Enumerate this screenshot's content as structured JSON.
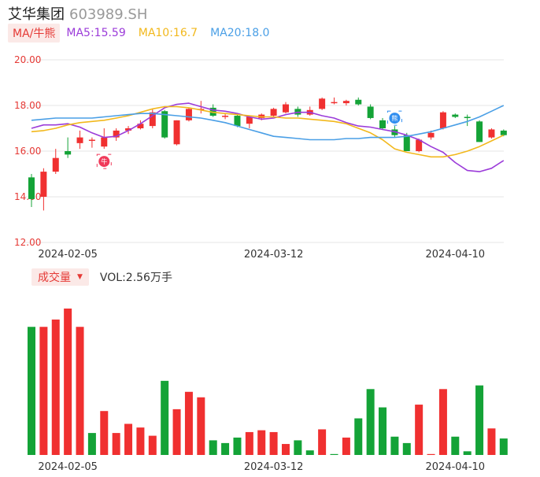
{
  "header": {
    "name": "艾华集团",
    "code": "603989.SH"
  },
  "ma_legend": {
    "button_label": "MA/牛熊",
    "ma5": {
      "label": "MA5:15.59",
      "color": "#9b3bd9"
    },
    "ma10": {
      "label": "MA10:16.7",
      "color": "#f2b81c"
    },
    "ma20": {
      "label": "MA20:18.0",
      "color": "#4a9fe6"
    }
  },
  "volume_legend": {
    "button_label": "成交量",
    "caret": "▼",
    "text": "VOL:2.56万手"
  },
  "colors": {
    "up": "#f03030",
    "down": "#14a337",
    "grid": "#e6e6e6",
    "axis_text": "#333333",
    "yaxis_text": "#e53935"
  },
  "markers": [
    {
      "type": "bull",
      "glyph": "牛",
      "index": 6,
      "color": "#f03a5a"
    },
    {
      "type": "bear",
      "glyph": "熊",
      "index": 30,
      "color": "#2f8ef0"
    }
  ],
  "chart_data": [
    {
      "type": "candlestick",
      "y_ticks": [
        "20.00",
        "18.00",
        "16.00",
        "14.00",
        "12.00"
      ],
      "ylim": [
        12,
        20
      ],
      "x_ticks": [
        {
          "label": "2024-02-05",
          "index": 3
        },
        {
          "label": "2024-03-12",
          "index": 20
        },
        {
          "label": "2024-04-10",
          "index": 35
        }
      ],
      "candles": [
        {
          "o": 14.85,
          "h": 15.0,
          "l": 13.55,
          "c": 13.9
        },
        {
          "o": 14.0,
          "h": 15.25,
          "l": 13.4,
          "c": 15.1
        },
        {
          "o": 15.1,
          "h": 16.1,
          "l": 15.0,
          "c": 15.7
        },
        {
          "o": 16.0,
          "h": 16.6,
          "l": 15.7,
          "c": 15.85
        },
        {
          "o": 16.35,
          "h": 16.9,
          "l": 16.1,
          "c": 16.6
        },
        {
          "o": 16.5,
          "h": 16.6,
          "l": 16.15,
          "c": 16.5
        },
        {
          "o": 16.2,
          "h": 17.0,
          "l": 16.1,
          "c": 16.6
        },
        {
          "o": 16.6,
          "h": 17.0,
          "l": 16.45,
          "c": 16.9
        },
        {
          "o": 16.9,
          "h": 17.1,
          "l": 16.75,
          "c": 17.0
        },
        {
          "o": 17.0,
          "h": 17.35,
          "l": 16.95,
          "c": 17.2
        },
        {
          "o": 17.1,
          "h": 17.85,
          "l": 17.0,
          "c": 17.7
        },
        {
          "o": 17.75,
          "h": 17.8,
          "l": 16.55,
          "c": 16.6
        },
        {
          "o": 16.3,
          "h": 17.35,
          "l": 16.25,
          "c": 17.35
        },
        {
          "o": 17.35,
          "h": 17.9,
          "l": 17.3,
          "c": 17.85
        },
        {
          "o": 17.8,
          "h": 18.2,
          "l": 17.65,
          "c": 17.85
        },
        {
          "o": 17.9,
          "h": 18.05,
          "l": 17.5,
          "c": 17.55
        },
        {
          "o": 17.5,
          "h": 17.65,
          "l": 17.4,
          "c": 17.55
        },
        {
          "o": 17.55,
          "h": 17.6,
          "l": 17.05,
          "c": 17.1
        },
        {
          "o": 17.2,
          "h": 17.55,
          "l": 17.0,
          "c": 17.5
        },
        {
          "o": 17.45,
          "h": 17.65,
          "l": 17.35,
          "c": 17.6
        },
        {
          "o": 17.55,
          "h": 17.9,
          "l": 17.5,
          "c": 17.85
        },
        {
          "o": 17.7,
          "h": 18.15,
          "l": 17.65,
          "c": 18.05
        },
        {
          "o": 17.85,
          "h": 17.95,
          "l": 17.5,
          "c": 17.6
        },
        {
          "o": 17.6,
          "h": 17.95,
          "l": 17.55,
          "c": 17.8
        },
        {
          "o": 17.85,
          "h": 18.35,
          "l": 17.8,
          "c": 18.3
        },
        {
          "o": 18.1,
          "h": 18.35,
          "l": 18.05,
          "c": 18.15
        },
        {
          "o": 18.1,
          "h": 18.25,
          "l": 18.0,
          "c": 18.2
        },
        {
          "o": 18.25,
          "h": 18.35,
          "l": 18.0,
          "c": 18.05
        },
        {
          "o": 17.95,
          "h": 18.05,
          "l": 17.4,
          "c": 17.45
        },
        {
          "o": 17.35,
          "h": 17.45,
          "l": 16.95,
          "c": 17.0
        },
        {
          "o": 16.95,
          "h": 17.1,
          "l": 16.6,
          "c": 16.7
        },
        {
          "o": 16.7,
          "h": 16.8,
          "l": 16.0,
          "c": 16.0
        },
        {
          "o": 16.0,
          "h": 16.55,
          "l": 15.95,
          "c": 16.5
        },
        {
          "o": 16.6,
          "h": 16.9,
          "l": 16.5,
          "c": 16.8
        },
        {
          "o": 17.0,
          "h": 17.75,
          "l": 16.95,
          "c": 17.7
        },
        {
          "o": 17.6,
          "h": 17.65,
          "l": 17.45,
          "c": 17.5
        },
        {
          "o": 17.5,
          "h": 17.6,
          "l": 17.1,
          "c": 17.45
        },
        {
          "o": 17.3,
          "h": 17.35,
          "l": 16.4,
          "c": 16.4
        },
        {
          "o": 16.6,
          "h": 17.0,
          "l": 16.55,
          "c": 16.95
        },
        {
          "o": 16.9,
          "h": 16.95,
          "l": 16.65,
          "c": 16.7
        }
      ],
      "series": [
        {
          "name": "MA5",
          "values": [
            17.0,
            17.15,
            17.15,
            17.2,
            17.05,
            16.8,
            16.6,
            16.65,
            16.9,
            17.2,
            17.55,
            17.9,
            18.05,
            18.1,
            17.95,
            17.8,
            17.75,
            17.65,
            17.5,
            17.4,
            17.45,
            17.6,
            17.7,
            17.7,
            17.55,
            17.45,
            17.25,
            17.1,
            17.05,
            16.95,
            16.85,
            16.7,
            16.5,
            16.2,
            15.95,
            15.5,
            15.15,
            15.1,
            15.25,
            15.59
          ]
        },
        {
          "name": "MA10",
          "values": [
            16.85,
            16.9,
            17.0,
            17.15,
            17.25,
            17.3,
            17.35,
            17.45,
            17.55,
            17.7,
            17.85,
            17.95,
            17.95,
            17.9,
            17.8,
            17.7,
            17.65,
            17.6,
            17.55,
            17.5,
            17.5,
            17.45,
            17.45,
            17.4,
            17.35,
            17.3,
            17.2,
            17.0,
            16.8,
            16.5,
            16.1,
            15.95,
            15.85,
            15.75,
            15.75,
            15.85,
            16.0,
            16.2,
            16.45,
            16.7
          ]
        },
        {
          "name": "MA20",
          "values": [
            17.35,
            17.4,
            17.45,
            17.45,
            17.45,
            17.45,
            17.5,
            17.55,
            17.6,
            17.65,
            17.65,
            17.6,
            17.55,
            17.5,
            17.45,
            17.35,
            17.25,
            17.1,
            16.95,
            16.8,
            16.65,
            16.6,
            16.55,
            16.5,
            16.5,
            16.5,
            16.55,
            16.55,
            16.6,
            16.6,
            16.6,
            16.65,
            16.75,
            16.85,
            17.0,
            17.15,
            17.3,
            17.5,
            17.75,
            18.0
          ]
        }
      ]
    },
    {
      "type": "bar",
      "name": "成交量",
      "x_ticks": [
        {
          "label": "2024-02-05",
          "index": 3
        },
        {
          "label": "2024-03-12",
          "index": 20
        },
        {
          "label": "2024-04-10",
          "index": 35
        }
      ],
      "values": [
        7.0,
        7.0,
        7.4,
        8.0,
        7.0,
        1.2,
        2.4,
        1.2,
        1.7,
        1.5,
        1.05,
        4.05,
        2.5,
        3.45,
        3.15,
        0.8,
        0.65,
        0.95,
        1.25,
        1.35,
        1.25,
        0.6,
        0.8,
        0.25,
        1.4,
        0.05,
        0.95,
        2.0,
        3.6,
        2.6,
        1.0,
        0.65,
        2.75,
        0.05,
        3.6,
        1.0,
        0.2,
        3.8,
        1.45,
        0.9
      ],
      "up": [
        0,
        1,
        1,
        1,
        1,
        0,
        1,
        1,
        1,
        1,
        1,
        0,
        1,
        1,
        1,
        0,
        0,
        0,
        1,
        1,
        1,
        1,
        0,
        0,
        1,
        0,
        1,
        0,
        0,
        0,
        0,
        0,
        1,
        1,
        1,
        0,
        0,
        0,
        1,
        0
      ]
    }
  ]
}
